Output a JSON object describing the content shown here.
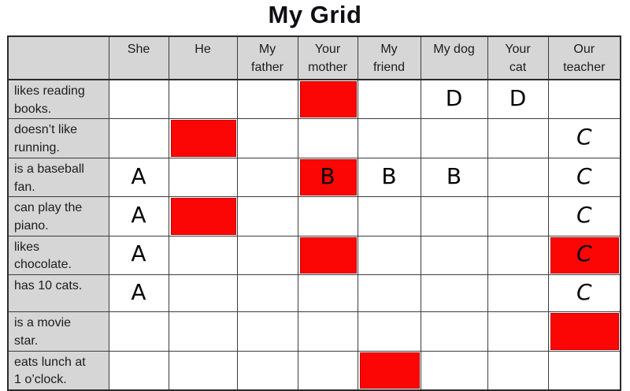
{
  "title": "My Grid",
  "colors": {
    "highlight_red": "#fc0505",
    "header_gray": "#d6d6d6",
    "grid_line": "#3c3c3c"
  },
  "grid": {
    "columns": [
      {
        "id": "row-label",
        "lines": [
          ""
        ]
      },
      {
        "id": "she",
        "lines": [
          "She"
        ]
      },
      {
        "id": "he",
        "lines": [
          "He"
        ]
      },
      {
        "id": "my-father",
        "lines": [
          "My",
          "father"
        ]
      },
      {
        "id": "your-mother",
        "lines": [
          "Your",
          "mother"
        ]
      },
      {
        "id": "my-friend",
        "lines": [
          "My",
          "friend"
        ]
      },
      {
        "id": "my-dog",
        "lines": [
          "My dog"
        ]
      },
      {
        "id": "your-cat",
        "lines": [
          "Your",
          "cat"
        ]
      },
      {
        "id": "our-teacher",
        "lines": [
          "Our",
          "teacher"
        ]
      }
    ],
    "rows": [
      {
        "label_lines": [
          "likes reading",
          "books."
        ],
        "cells": [
          {},
          {},
          {},
          {
            "red": true
          },
          {},
          {
            "letter": "D"
          },
          {
            "letter": "D"
          },
          {}
        ]
      },
      {
        "label_lines": [
          "doesn’t like",
          "running."
        ],
        "cells": [
          {},
          {
            "red": true
          },
          {},
          {},
          {},
          {},
          {},
          {
            "letter": "C"
          }
        ]
      },
      {
        "label_lines": [
          "is a baseball",
          "fan."
        ],
        "cells": [
          {
            "letter": "A"
          },
          {},
          {},
          {
            "red": true,
            "letter": "B"
          },
          {
            "letter": "B"
          },
          {
            "letter": "B"
          },
          {},
          {
            "letter": "C"
          }
        ]
      },
      {
        "label_lines": [
          "can play the",
          "piano."
        ],
        "cells": [
          {
            "letter": "A"
          },
          {
            "red": true
          },
          {},
          {},
          {},
          {},
          {},
          {
            "letter": "C"
          }
        ]
      },
      {
        "label_lines": [
          "likes",
          "chocolate."
        ],
        "cells": [
          {
            "letter": "A"
          },
          {},
          {},
          {
            "red": true
          },
          {},
          {},
          {},
          {
            "red": true,
            "letter": "C"
          }
        ]
      },
      {
        "label_lines": [
          "has 10 cats."
        ],
        "cells": [
          {
            "letter": "A"
          },
          {},
          {},
          {},
          {},
          {},
          {},
          {
            "letter": "C"
          }
        ]
      },
      {
        "label_lines": [
          "is a movie",
          "star."
        ],
        "cells": [
          {},
          {},
          {},
          {},
          {},
          {},
          {},
          {
            "red": true
          }
        ]
      },
      {
        "label_lines": [
          "eats lunch at",
          "1 o’clock."
        ],
        "cells": [
          {},
          {},
          {},
          {},
          {
            "red": true
          },
          {},
          {},
          {}
        ]
      }
    ]
  }
}
